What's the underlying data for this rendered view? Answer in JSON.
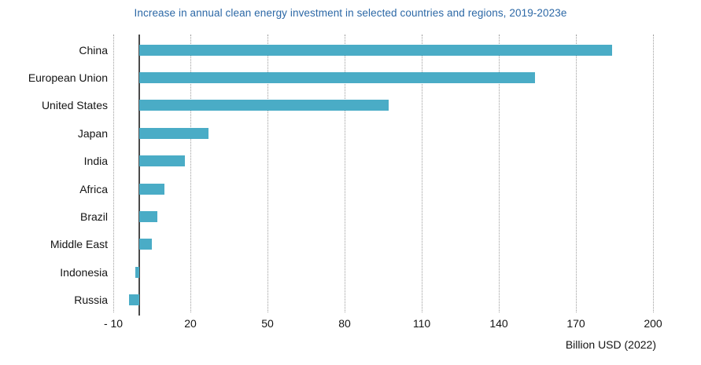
{
  "chart_data": {
    "type": "bar",
    "orientation": "horizontal",
    "title": "Increase in annual clean energy investment in selected countries and regions, 2019-2023e",
    "categories": [
      "China",
      "European Union",
      "United States",
      "Japan",
      "India",
      "Africa",
      "Brazil",
      "Middle East",
      "Indonesia",
      "Russia"
    ],
    "values": [
      184,
      154,
      97,
      27,
      18,
      10,
      7,
      5,
      -1.5,
      -4
    ],
    "xlabel": "Billion USD (2022)",
    "xlim": [
      -10,
      200
    ],
    "xticks": [
      -10,
      20,
      50,
      80,
      110,
      140,
      170,
      200
    ],
    "xtick_labels": [
      "- 10",
      "20",
      "50",
      "80",
      "110",
      "140",
      "170",
      "200"
    ],
    "grid": "vertical-dotted",
    "legend": "none",
    "colors": {
      "bar": "#4AACC6",
      "title": "#2C68A6",
      "zero_axis_line": "#4A4A4A",
      "gridline": "#9D9D9D",
      "text": "#141414"
    }
  }
}
